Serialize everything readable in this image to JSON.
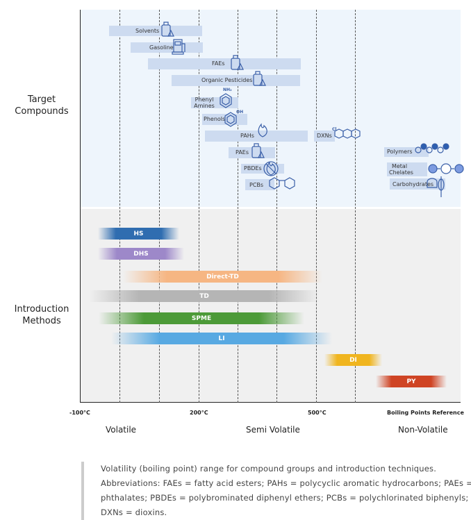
{
  "sections": {
    "target": "Target Compounds",
    "methods": "Introduction Methods"
  },
  "compounds": [
    {
      "label": "Solvents",
      "icon": "flask-bottle-icon"
    },
    {
      "label": "Gasoline",
      "icon": "fuel-pump-icon"
    },
    {
      "label": "FAEs",
      "icon": "oil-can-icon"
    },
    {
      "label": "Organic Pesticides",
      "icon": "spray-bottle-icon"
    },
    {
      "label": "Phenyl Amines",
      "icon": "aniline-structure-icon",
      "sub": "NH₂"
    },
    {
      "label": "Phenols",
      "icon": "phenol-structure-icon",
      "sub": "OH"
    },
    {
      "label": "PAHs",
      "icon": "flame-icon"
    },
    {
      "label": "DXNs",
      "icon": "dioxin-structure-icon",
      "sub": "Cl"
    },
    {
      "label": "PAEs",
      "icon": "plastic-bottles-icon"
    },
    {
      "label": "PBDEs",
      "icon": "no-fire-icon"
    },
    {
      "label": "PCBs",
      "icon": "biphenyl-structure-icon"
    },
    {
      "label": "Polymers",
      "icon": "polymer-chain-icon"
    },
    {
      "label": "Metal Chelates",
      "icon": "chelate-icon"
    },
    {
      "label": "Carbohydrates",
      "icon": "bread-wheat-icon"
    }
  ],
  "methods": [
    {
      "label": "HS",
      "color": "#2f6db0"
    },
    {
      "label": "DHS",
      "color": "#9d88c9"
    },
    {
      "label": "Direct-TD",
      "color": "#f6b683"
    },
    {
      "label": "TD",
      "color": "#b5b5b5"
    },
    {
      "label": "SPME",
      "color": "#4c9a38"
    },
    {
      "label": "LI",
      "color": "#58a9e2"
    },
    {
      "label": "DI",
      "color": "#f0b51f"
    },
    {
      "label": "PY",
      "color": "#cf4424"
    }
  ],
  "axis": {
    "ticks": [
      "-100°C",
      "200°C",
      "500°C"
    ],
    "reference": "Boiling Points Reference",
    "categories": [
      "Volatile",
      "Semi Volatile",
      "Non-Volatile"
    ]
  },
  "caption": "Volatility (boiling point) range for compound groups and introduction techniques. Abbreviations: FAEs = fatty acid esters; PAHs = polycyclic aromatic hydrocarbons; PAEs = phthalates; PBDEs = polybrominated diphenyl ethers; PCBs = polychlorinated biphenyls; DXNs = dioxins."
}
